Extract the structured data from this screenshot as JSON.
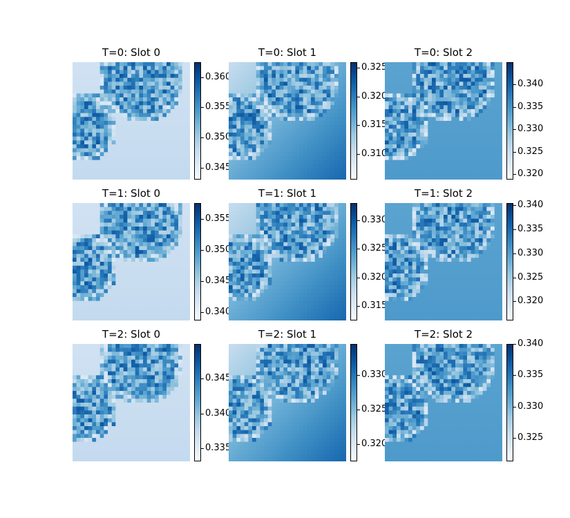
{
  "chart_data": [
    {
      "type": "heatmap",
      "title": "T=0: Slot 0",
      "colormap": "Blues",
      "grid": false,
      "colorbar_range": [
        0.343,
        0.3625
      ],
      "colorbar_ticks": [
        "0.345",
        "0.350",
        "0.355",
        "0.360"
      ],
      "pattern": "slot0"
    },
    {
      "type": "heatmap",
      "title": "T=0: Slot 1",
      "colormap": "Blues",
      "grid": false,
      "colorbar_range": [
        0.3055,
        0.326
      ],
      "colorbar_ticks": [
        "0.310",
        "0.315",
        "0.320",
        "0.325"
      ],
      "pattern": "slot1"
    },
    {
      "type": "heatmap",
      "title": "T=0: Slot 2",
      "colormap": "Blues",
      "grid": false,
      "colorbar_range": [
        0.3188,
        0.345
      ],
      "colorbar_ticks": [
        "0.320",
        "0.325",
        "0.330",
        "0.335",
        "0.340"
      ],
      "pattern": "slot2"
    },
    {
      "type": "heatmap",
      "title": "T=1: Slot 0",
      "colormap": "Blues",
      "grid": false,
      "colorbar_range": [
        0.3387,
        0.3575
      ],
      "colorbar_ticks": [
        "0.340",
        "0.345",
        "0.350",
        "0.355"
      ],
      "pattern": "slot0"
    },
    {
      "type": "heatmap",
      "title": "T=1: Slot 1",
      "colormap": "Blues",
      "grid": false,
      "colorbar_range": [
        0.3125,
        0.333
      ],
      "colorbar_ticks": [
        "0.315",
        "0.320",
        "0.325",
        "0.330"
      ],
      "pattern": "slot1"
    },
    {
      "type": "heatmap",
      "title": "T=1: Slot 2",
      "colormap": "Blues",
      "grid": false,
      "colorbar_range": [
        0.316,
        0.3405
      ],
      "colorbar_ticks": [
        "0.320",
        "0.325",
        "0.330",
        "0.335",
        "0.340"
      ],
      "pattern": "slot2"
    },
    {
      "type": "heatmap",
      "title": "T=2: Slot 0",
      "colormap": "Blues",
      "grid": false,
      "colorbar_range": [
        0.3331,
        0.35
      ],
      "colorbar_ticks": [
        "0.335",
        "0.340",
        "0.345"
      ],
      "pattern": "slot0"
    },
    {
      "type": "heatmap",
      "title": "T=2: Slot 1",
      "colormap": "Blues",
      "grid": false,
      "colorbar_range": [
        0.3175,
        0.3345
      ],
      "colorbar_ticks": [
        "0.320",
        "0.325",
        "0.330"
      ],
      "pattern": "slot1"
    },
    {
      "type": "heatmap",
      "title": "T=2: Slot 2",
      "colormap": "Blues",
      "grid": false,
      "colorbar_range": [
        0.3213,
        0.34
      ],
      "colorbar_ticks": [
        "0.325",
        "0.330",
        "0.335",
        "0.340"
      ],
      "pattern": "slot2"
    }
  ]
}
